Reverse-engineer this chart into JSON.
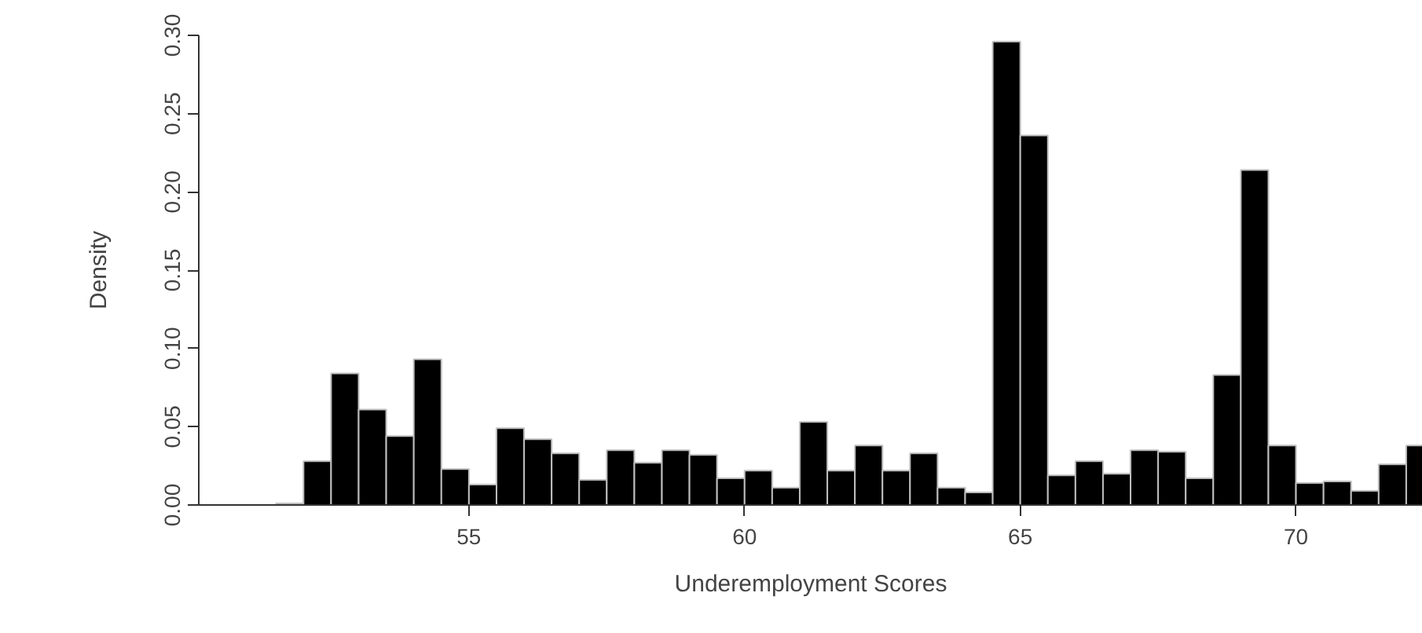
{
  "chart_data": {
    "type": "histogram",
    "xlabel": "Underemployment Scores",
    "ylabel": "Density",
    "bins": [
      51.5,
      52,
      52.5,
      53,
      53.5,
      54,
      54.5,
      55,
      55.5,
      56,
      56.5,
      57,
      57.5,
      58,
      58.5,
      59,
      59.5,
      60,
      60.5,
      61,
      61.5,
      62,
      62.5,
      63,
      63.5,
      64,
      64.5,
      65,
      65.5,
      66,
      66.5,
      67,
      67.5,
      68,
      68.5,
      69,
      69.5,
      70,
      70.5,
      71,
      71.5,
      72,
      72.5
    ],
    "values": [
      0.001,
      0.028,
      0.084,
      0.061,
      0.044,
      0.093,
      0.023,
      0.013,
      0.049,
      0.042,
      0.033,
      0.016,
      0.035,
      0.027,
      0.035,
      0.032,
      0.017,
      0.022,
      0.011,
      0.053,
      0.022,
      0.038,
      0.022,
      0.033,
      0.011,
      0.008,
      0.296,
      0.236,
      0.019,
      0.028,
      0.02,
      0.035,
      0.034,
      0.017,
      0.083,
      0.214,
      0.038,
      0.014,
      0.015,
      0.009,
      0.026,
      0.038
    ],
    "color": "#000000",
    "xlim": [
      50.1,
      72.3
    ],
    "ylim": [
      0,
      0.3
    ],
    "xticks": [
      55,
      60,
      65,
      70
    ],
    "yticks": [
      {
        "value": 0,
        "label": "0.00"
      },
      {
        "value": 0.05,
        "label": "0.05"
      },
      {
        "value": 0.1,
        "label": "0.10"
      },
      {
        "value": 0.15,
        "label": "0.15"
      },
      {
        "value": 0.2,
        "label": "0.20"
      },
      {
        "value": 0.25,
        "label": "0.25"
      },
      {
        "value": 0.3,
        "label": "0.30"
      }
    ],
    "grid": false
  }
}
